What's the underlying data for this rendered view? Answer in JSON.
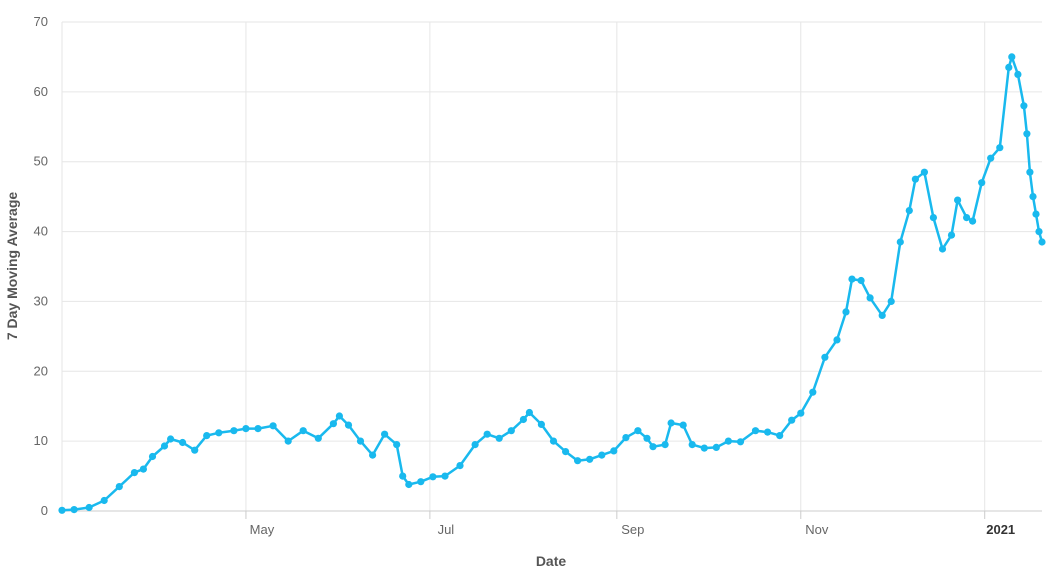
{
  "chart_data": {
    "type": "line",
    "title": "",
    "xlabel": "Date",
    "ylabel": "7 Day Moving Average",
    "ylim": [
      0,
      70
    ],
    "yticks": [
      0,
      10,
      20,
      30,
      40,
      50,
      60,
      70
    ],
    "xlim": [
      "2020-03-01",
      "2021-01-20"
    ],
    "xticks": [
      {
        "date": "2020-05-01",
        "label": "May",
        "bold": false
      },
      {
        "date": "2020-07-01",
        "label": "Jul",
        "bold": false
      },
      {
        "date": "2020-09-01",
        "label": "Sep",
        "bold": false
      },
      {
        "date": "2020-11-01",
        "label": "Nov",
        "bold": false
      },
      {
        "date": "2021-01-01",
        "label": "2021",
        "bold": true
      }
    ],
    "grid": true,
    "color": "#19b9ee",
    "series": [
      {
        "name": "",
        "points": [
          [
            "2020-03-01",
            0.1
          ],
          [
            "2020-03-05",
            0.2
          ],
          [
            "2020-03-10",
            0.5
          ],
          [
            "2020-03-15",
            1.5
          ],
          [
            "2020-03-20",
            3.5
          ],
          [
            "2020-03-25",
            5.5
          ],
          [
            "2020-03-28",
            6.0
          ],
          [
            "2020-03-31",
            7.8
          ],
          [
            "2020-04-04",
            9.3
          ],
          [
            "2020-04-06",
            10.3
          ],
          [
            "2020-04-10",
            9.8
          ],
          [
            "2020-04-14",
            8.7
          ],
          [
            "2020-04-18",
            10.8
          ],
          [
            "2020-04-22",
            11.2
          ],
          [
            "2020-04-27",
            11.5
          ],
          [
            "2020-05-01",
            11.8
          ],
          [
            "2020-05-05",
            11.8
          ],
          [
            "2020-05-10",
            12.2
          ],
          [
            "2020-05-15",
            10.0
          ],
          [
            "2020-05-20",
            11.5
          ],
          [
            "2020-05-25",
            10.4
          ],
          [
            "2020-05-30",
            12.5
          ],
          [
            "2020-06-01",
            13.6
          ],
          [
            "2020-06-04",
            12.3
          ],
          [
            "2020-06-08",
            10.0
          ],
          [
            "2020-06-12",
            8.0
          ],
          [
            "2020-06-16",
            11.0
          ],
          [
            "2020-06-20",
            9.5
          ],
          [
            "2020-06-22",
            5.0
          ],
          [
            "2020-06-24",
            3.8
          ],
          [
            "2020-06-28",
            4.2
          ],
          [
            "2020-07-02",
            4.9
          ],
          [
            "2020-07-06",
            5.0
          ],
          [
            "2020-07-11",
            6.5
          ],
          [
            "2020-07-16",
            9.5
          ],
          [
            "2020-07-20",
            11.0
          ],
          [
            "2020-07-24",
            10.4
          ],
          [
            "2020-07-28",
            11.5
          ],
          [
            "2020-08-01",
            13.1
          ],
          [
            "2020-08-03",
            14.1
          ],
          [
            "2020-08-07",
            12.4
          ],
          [
            "2020-08-11",
            10.0
          ],
          [
            "2020-08-15",
            8.5
          ],
          [
            "2020-08-19",
            7.2
          ],
          [
            "2020-08-23",
            7.4
          ],
          [
            "2020-08-27",
            8.0
          ],
          [
            "2020-08-31",
            8.6
          ],
          [
            "2020-09-04",
            10.5
          ],
          [
            "2020-09-08",
            11.5
          ],
          [
            "2020-09-11",
            10.4
          ],
          [
            "2020-09-13",
            9.2
          ],
          [
            "2020-09-17",
            9.5
          ],
          [
            "2020-09-19",
            12.6
          ],
          [
            "2020-09-23",
            12.3
          ],
          [
            "2020-09-26",
            9.5
          ],
          [
            "2020-09-30",
            9.0
          ],
          [
            "2020-10-04",
            9.1
          ],
          [
            "2020-10-08",
            10.0
          ],
          [
            "2020-10-12",
            9.9
          ],
          [
            "2020-10-17",
            11.5
          ],
          [
            "2020-10-21",
            11.3
          ],
          [
            "2020-10-25",
            10.8
          ],
          [
            "2020-10-29",
            13.0
          ],
          [
            "2020-11-01",
            14.0
          ],
          [
            "2020-11-05",
            17.0
          ],
          [
            "2020-11-09",
            22.0
          ],
          [
            "2020-11-13",
            24.5
          ],
          [
            "2020-11-16",
            28.5
          ],
          [
            "2020-11-18",
            33.2
          ],
          [
            "2020-11-21",
            33.0
          ],
          [
            "2020-11-24",
            30.5
          ],
          [
            "2020-11-28",
            28.0
          ],
          [
            "2020-12-01",
            30.0
          ],
          [
            "2020-12-04",
            38.5
          ],
          [
            "2020-12-07",
            43.0
          ],
          [
            "2020-12-09",
            47.5
          ],
          [
            "2020-12-12",
            48.5
          ],
          [
            "2020-12-15",
            42.0
          ],
          [
            "2020-12-18",
            37.5
          ],
          [
            "2020-12-21",
            39.5
          ],
          [
            "2020-12-23",
            44.5
          ],
          [
            "2020-12-26",
            42.0
          ],
          [
            "2020-12-28",
            41.5
          ],
          [
            "2020-12-31",
            47.0
          ],
          [
            "2021-01-03",
            50.5
          ],
          [
            "2021-01-06",
            52.0
          ],
          [
            "2021-01-09",
            63.5
          ],
          [
            "2021-01-10",
            65.0
          ],
          [
            "2021-01-12",
            62.5
          ],
          [
            "2021-01-14",
            58.0
          ],
          [
            "2021-01-15",
            54.0
          ],
          [
            "2021-01-16",
            48.5
          ],
          [
            "2021-01-17",
            45.0
          ],
          [
            "2021-01-18",
            42.5
          ],
          [
            "2021-01-19",
            40.0
          ],
          [
            "2021-01-20",
            38.5
          ]
        ]
      }
    ]
  }
}
